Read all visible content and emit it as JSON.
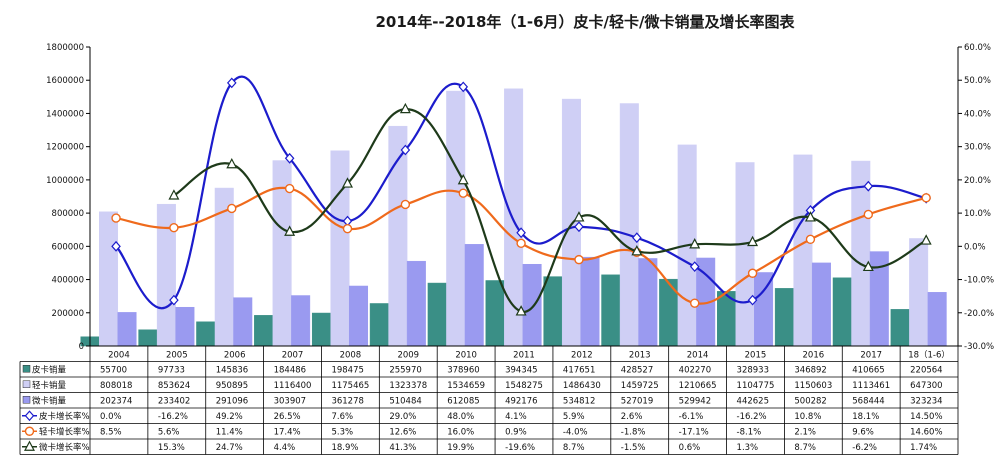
{
  "chart_data": {
    "type": "bar",
    "title": "2014年--2018年（1-6月）皮卡/轻卡/微卡销量及增长率图表",
    "categories": [
      "2004",
      "2005",
      "2006",
      "2007",
      "2008",
      "2009",
      "2010",
      "2011",
      "2012",
      "2013",
      "2014",
      "2015",
      "2016",
      "2017",
      "18（1-6）"
    ],
    "y_left": {
      "ylim": [
        0,
        1800000
      ],
      "ticks": [
        "0",
        "200000",
        "400000",
        "600000",
        "800000",
        "1000000",
        "1200000",
        "1400000",
        "1600000",
        "1800000"
      ]
    },
    "y_right": {
      "ylim": [
        -30,
        60
      ],
      "ticks": [
        "60.0%",
        "50.0%",
        "40.0%",
        "30.0%",
        "20.0%",
        "10.0%",
        "0.0%",
        "-10.0%",
        "-20.0%",
        "-30.0%"
      ]
    },
    "bar_series": [
      {
        "name": "皮卡销量",
        "color": "#3a8f86",
        "values": [
          55700,
          97733,
          145836,
          184486,
          198475,
          255970,
          378960,
          394345,
          417651,
          428527,
          402270,
          328933,
          346892,
          410665,
          220564
        ],
        "labels": [
          "55700",
          "97733",
          "145836",
          "184486",
          "198475",
          "255970",
          "378960",
          "394345",
          "417651",
          "428527",
          "402270",
          "328933",
          "346892",
          "410665",
          "220564"
        ]
      },
      {
        "name": "轻卡销量",
        "color": "#cfcff5",
        "values": [
          808018,
          853624,
          950895,
          1116400,
          1175465,
          1323378,
          1534659,
          1548275,
          1486430,
          1459725,
          1210665,
          1104775,
          1150603,
          1113461,
          647300
        ],
        "labels": [
          "808018",
          "853624",
          "950895",
          "1116400",
          "1175465",
          "1323378",
          "1534659",
          "1548275",
          "1486430",
          "1459725",
          "1210665",
          "1104775",
          "1150603",
          "1113461",
          "647300"
        ]
      },
      {
        "name": "微卡销量",
        "color": "#9a9af0",
        "values": [
          202374,
          233402,
          291096,
          303907,
          361278,
          510484,
          612085,
          492176,
          534812,
          527019,
          529942,
          442625,
          500282,
          568444,
          323234
        ],
        "labels": [
          "202374",
          "233402",
          "291096",
          "303907",
          "361278",
          "510484",
          "612085",
          "492176",
          "534812",
          "527019",
          "529942",
          "442625",
          "500282",
          "568444",
          "323234"
        ]
      }
    ],
    "line_series": [
      {
        "name": "皮卡增长率%",
        "color": "#1c1ccc",
        "marker": "diamond",
        "values": [
          0.0,
          -16.2,
          49.2,
          26.5,
          7.6,
          29.0,
          48.0,
          4.1,
          5.9,
          2.6,
          -6.1,
          -16.2,
          10.8,
          18.1,
          14.5
        ],
        "labels": [
          "0.0%",
          "-16.2%",
          "49.2%",
          "26.5%",
          "7.6%",
          "29.0%",
          "48.0%",
          "4.1%",
          "5.9%",
          "2.6%",
          "-6.1%",
          "-16.2%",
          "10.8%",
          "18.1%",
          "14.50%"
        ]
      },
      {
        "name": "轻卡增长率%",
        "color": "#ef6a1c",
        "marker": "circle",
        "values": [
          8.5,
          5.6,
          11.4,
          17.4,
          5.3,
          12.6,
          16.0,
          0.9,
          -4.0,
          -1.8,
          -17.1,
          -8.1,
          2.1,
          9.6,
          14.6
        ],
        "labels": [
          "8.5%",
          "5.6%",
          "11.4%",
          "17.4%",
          "5.3%",
          "12.6%",
          "16.0%",
          "0.9%",
          "-4.0%",
          "-1.8%",
          "-17.1%",
          "-8.1%",
          "2.1%",
          "9.6%",
          "14.60%"
        ]
      },
      {
        "name": "微卡增长率%",
        "color": "#1e3a1a",
        "marker": "triangle",
        "values": [
          null,
          15.3,
          24.7,
          4.4,
          18.9,
          41.3,
          19.9,
          -19.6,
          8.7,
          -1.5,
          0.6,
          1.3,
          8.7,
          -6.2,
          1.74
        ],
        "labels": [
          "",
          "15.3%",
          "24.7%",
          "4.4%",
          "18.9%",
          "41.3%",
          "19.9%",
          "-19.6%",
          "8.7%",
          "-1.5%",
          "0.6%",
          "1.3%",
          "8.7%",
          "-6.2%",
          "1.74%"
        ]
      }
    ]
  }
}
